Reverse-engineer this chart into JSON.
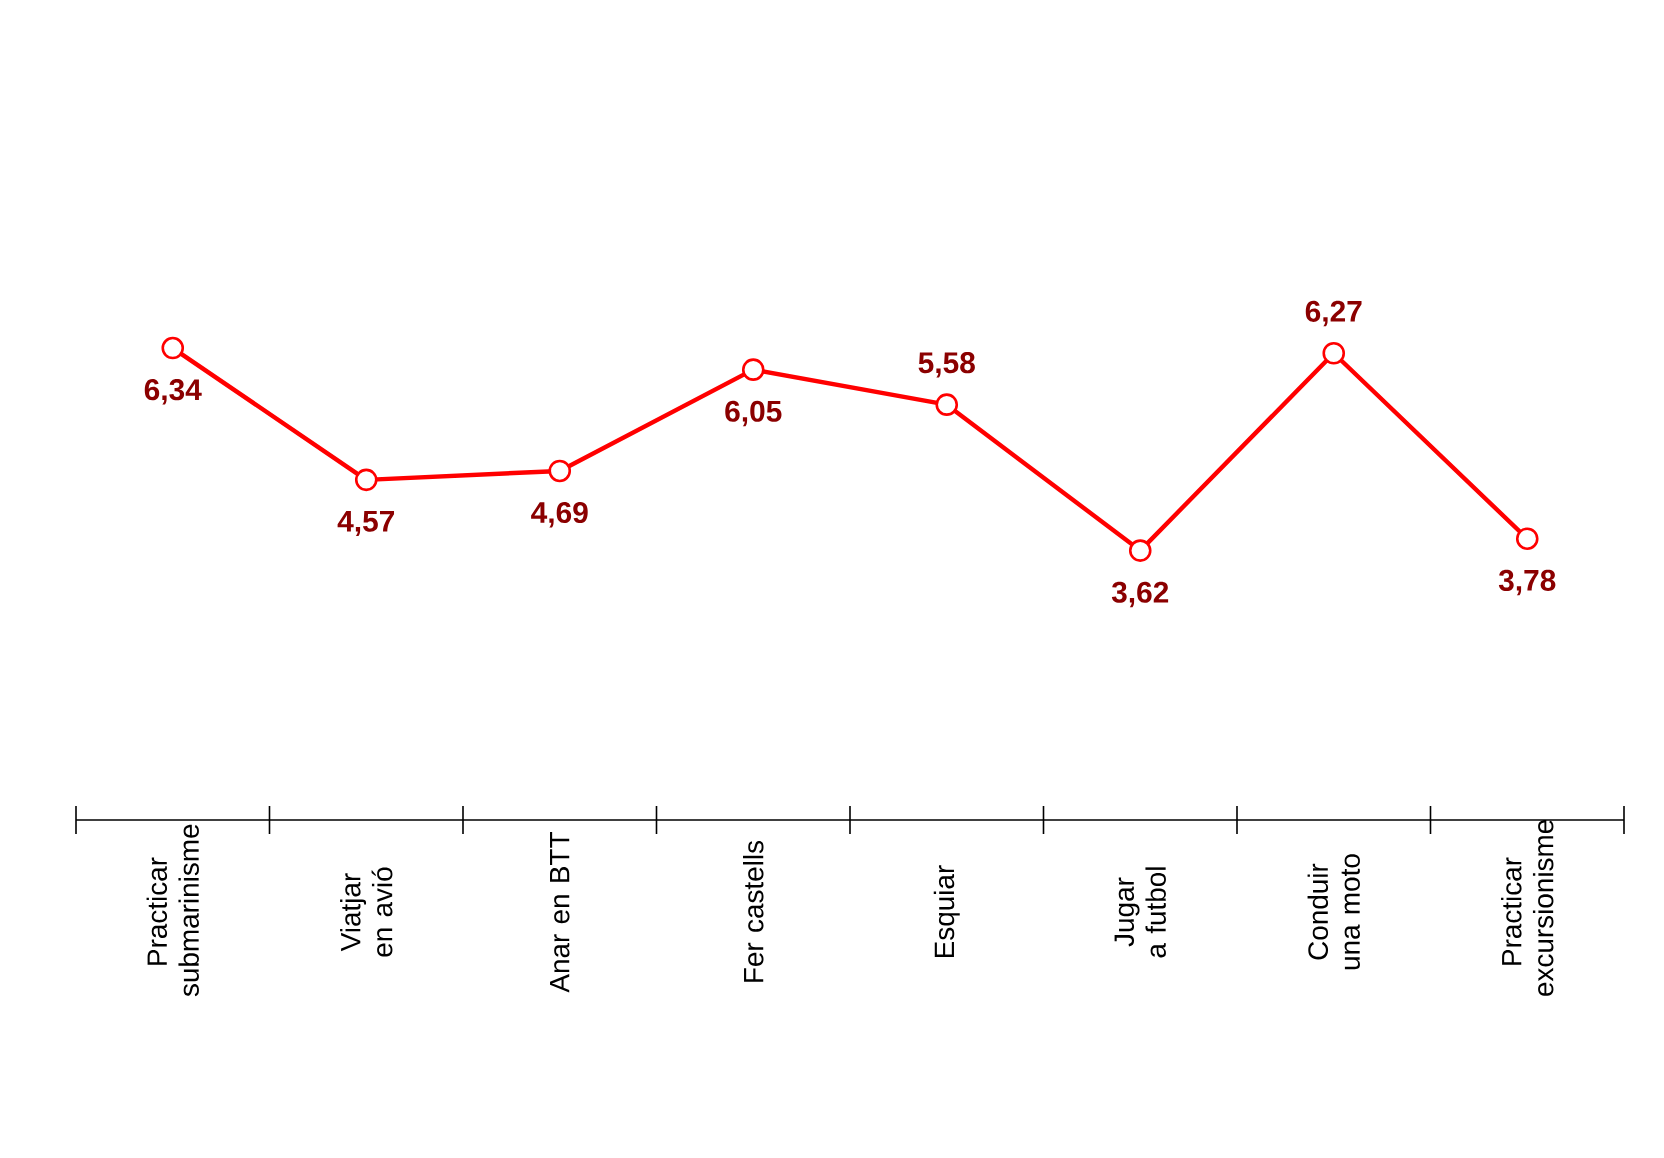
{
  "chart_data": {
    "type": "line",
    "categories": [
      "Practicar submarinisme",
      "Viatjar en avió",
      "Anar en BTT",
      "Fer castells",
      "Esquiar",
      "Jugar a futbol",
      "Conduir una moto",
      "Practicar excursionisme"
    ],
    "values": [
      6.34,
      4.57,
      4.69,
      6.05,
      5.58,
      3.62,
      6.27,
      3.78
    ],
    "value_labels": [
      "6,34",
      "4,57",
      "4,69",
      "6,05",
      "5,58",
      "3,62",
      "6,27",
      "3,78"
    ],
    "color": "#ff0000",
    "marker": "circle",
    "line_style": "solid"
  }
}
